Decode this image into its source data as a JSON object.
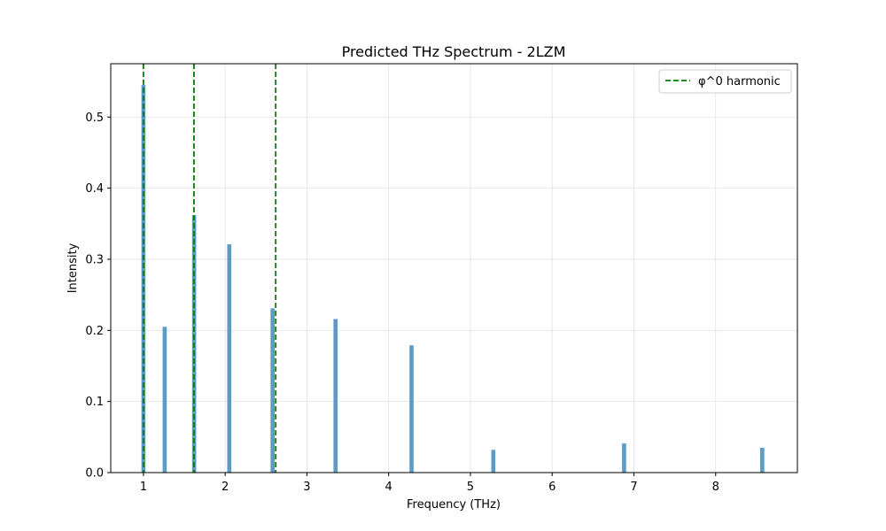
{
  "chart_data": {
    "type": "bar",
    "title": "Predicted THz Spectrum - 2LZM",
    "xlabel": "Frequency (THz)",
    "ylabel": "Intensity",
    "xlim": [
      0.6,
      9.0
    ],
    "ylim": [
      0,
      0.575
    ],
    "xticks": [
      1,
      2,
      3,
      4,
      5,
      6,
      7,
      8
    ],
    "yticks": [
      0.0,
      0.1,
      0.2,
      0.3,
      0.4,
      0.5
    ],
    "grid": true,
    "legend_position": "top-right",
    "bar_color": "#5b9bc4",
    "bar_width_thz": 0.05,
    "bars": {
      "x": [
        1.0,
        1.26,
        1.62,
        2.05,
        2.58,
        3.35,
        4.28,
        5.28,
        6.88,
        8.57
      ],
      "values": [
        0.545,
        0.205,
        0.362,
        0.321,
        0.231,
        0.216,
        0.179,
        0.032,
        0.041,
        0.035
      ]
    },
    "harmonic_lines": {
      "name": "φ^0 harmonic",
      "color": "#008000",
      "style": "dashed",
      "x": [
        1.0,
        1.618,
        2.618
      ]
    }
  }
}
